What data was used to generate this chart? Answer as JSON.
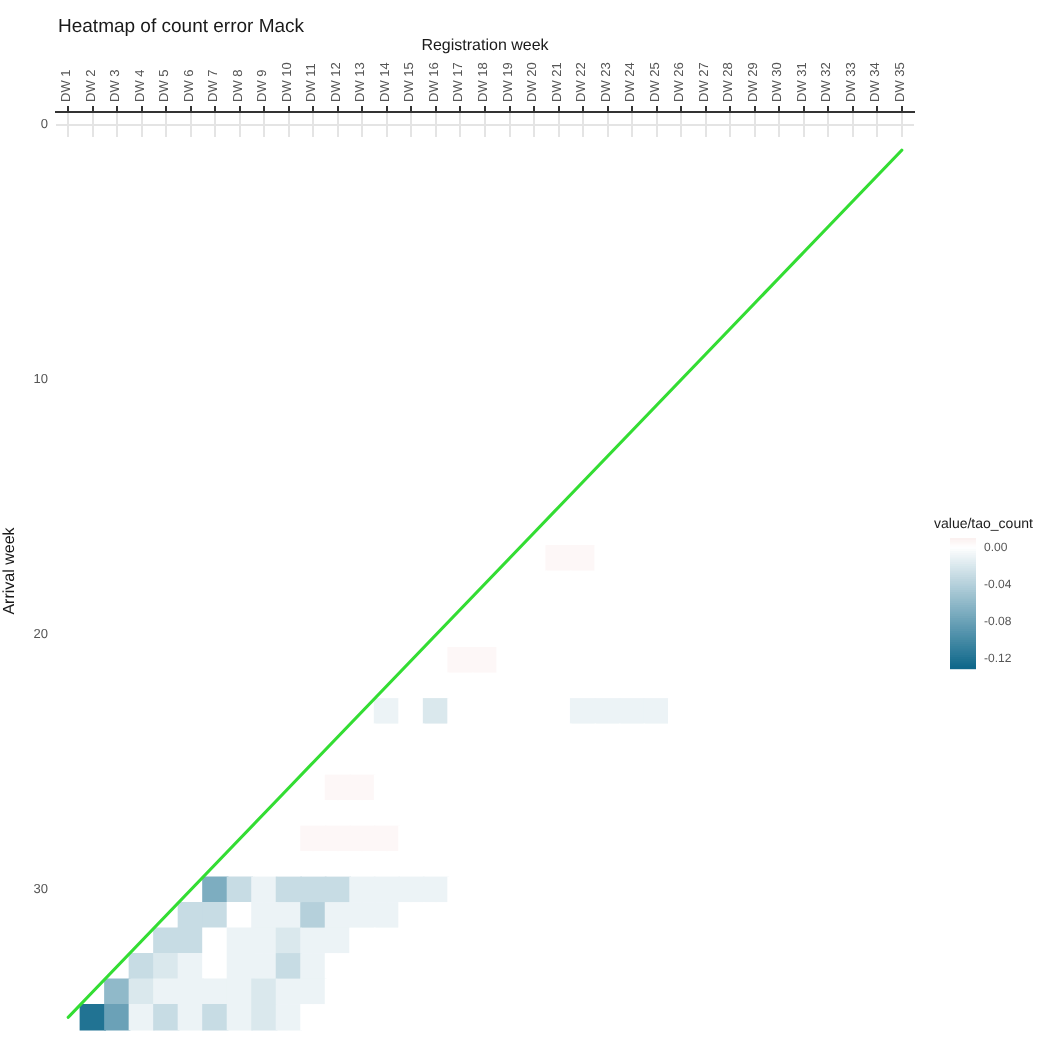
{
  "chart_data": {
    "type": "heatmap",
    "title": "Heatmap of count error Mack",
    "xlabel": "Registration week",
    "ylabel": "Arrival week",
    "clabel": "value/tao_count",
    "categories": [
      "DW 1",
      "DW 2",
      "DW 3",
      "DW 4",
      "DW 5",
      "DW 6",
      "DW 7",
      "DW 8",
      "DW 9",
      "DW 10",
      "DW 11",
      "DW 12",
      "DW 13",
      "DW 14",
      "DW 15",
      "DW 16",
      "DW 17",
      "DW 18",
      "DW 19",
      "DW 20",
      "DW 21",
      "DW 22",
      "DW 23",
      "DW 24",
      "DW 25",
      "DW 26",
      "DW 27",
      "DW 28",
      "DW 29",
      "DW 30",
      "DW 31",
      "DW 32",
      "DW 33",
      "DW 34",
      "DW 35"
    ],
    "y_categories": [
      "0",
      null,
      null,
      null,
      null,
      null,
      null,
      null,
      null,
      null,
      "10",
      null,
      null,
      null,
      null,
      null,
      null,
      null,
      null,
      null,
      "20",
      null,
      null,
      null,
      null,
      null,
      null,
      null,
      null,
      null,
      "30",
      null,
      null,
      null,
      null,
      null
    ],
    "cells": [
      [
        null,
        null,
        null,
        null,
        null,
        null,
        null,
        null,
        null,
        null,
        null,
        null,
        null,
        null,
        null,
        null,
        null,
        null,
        null,
        null,
        null,
        null,
        null,
        null,
        null,
        null,
        null,
        null,
        null,
        null,
        null,
        null,
        null,
        null,
        null
      ],
      [
        0,
        0,
        0,
        0,
        0,
        0,
        0,
        0,
        0,
        0,
        0,
        0,
        0,
        0,
        0,
        0,
        0,
        0,
        0,
        0,
        0,
        0,
        0,
        0,
        0,
        0,
        0,
        0,
        0,
        0,
        0,
        0,
        0,
        0,
        0
      ],
      [
        0,
        0,
        0,
        0,
        0,
        0,
        0,
        0,
        0,
        0,
        0,
        0,
        0,
        0,
        0,
        0,
        0,
        0,
        0,
        0,
        0,
        0,
        0,
        0,
        0,
        0,
        0,
        0,
        0,
        0,
        0,
        0,
        0,
        0,
        0
      ],
      [
        0,
        0,
        0,
        0,
        0,
        0,
        0,
        0,
        0,
        0,
        0,
        0,
        0,
        0,
        0,
        0,
        0,
        0,
        0,
        0,
        0,
        0,
        0,
        0,
        0,
        0,
        0,
        0,
        0,
        0,
        0,
        0,
        0,
        0,
        0
      ],
      [
        0,
        0,
        0,
        0,
        0,
        0,
        0,
        0,
        0,
        0,
        0,
        0,
        0,
        0,
        0,
        0,
        0,
        0,
        0,
        0,
        0,
        0,
        0,
        0,
        0,
        0,
        0,
        0,
        0,
        0,
        0,
        0,
        0,
        0,
        0
      ],
      [
        0,
        0,
        0,
        0,
        0,
        0,
        0,
        0,
        0,
        0,
        0,
        0,
        0,
        0,
        0,
        0,
        0,
        0,
        0,
        0,
        0,
        0,
        0,
        0,
        0,
        0,
        0,
        0,
        0,
        0,
        0,
        0,
        0,
        0,
        0
      ],
      [
        0,
        0,
        0,
        0,
        0,
        0,
        0,
        0,
        0,
        0,
        0,
        0,
        0,
        0,
        0,
        0,
        0,
        0,
        0,
        0,
        0,
        0,
        0,
        0,
        0,
        0,
        0,
        0,
        0,
        0,
        0,
        0,
        0,
        0,
        0
      ],
      [
        0,
        0,
        0,
        0,
        0,
        0,
        0,
        0,
        0,
        0,
        0,
        0,
        0,
        0,
        0,
        0,
        0,
        0,
        0,
        0,
        0,
        0,
        0,
        0,
        0,
        0,
        0,
        0,
        0,
        0,
        0,
        0,
        0,
        0,
        0
      ],
      [
        0,
        0,
        0,
        0,
        0,
        0,
        0,
        0,
        0,
        0,
        0,
        0,
        0,
        0,
        0,
        0,
        0,
        0,
        0,
        0,
        0,
        0,
        0,
        0,
        0,
        0,
        0,
        0,
        0,
        0,
        0,
        0,
        0,
        0,
        0
      ],
      [
        0,
        0,
        0,
        0,
        0,
        0,
        0,
        0,
        0,
        0,
        0,
        0,
        0,
        0,
        0,
        0,
        0,
        0,
        0,
        0,
        0,
        0,
        0,
        0,
        0,
        0,
        0,
        0,
        0,
        0,
        0,
        0,
        0,
        0,
        0
      ],
      [
        0,
        0,
        0,
        0,
        0,
        0,
        0,
        0,
        0,
        0,
        0,
        0,
        0,
        0,
        0,
        0,
        0,
        0,
        0,
        0,
        0,
        0,
        0,
        0,
        0,
        0,
        0,
        0,
        0,
        0,
        0,
        0,
        0,
        0,
        0
      ],
      [
        0,
        0,
        0,
        0,
        0,
        0,
        0,
        0,
        0,
        0,
        0,
        0,
        0,
        0,
        0,
        0,
        0,
        0,
        0,
        0,
        0,
        0,
        0,
        0,
        0,
        0,
        0,
        0,
        0,
        0,
        0,
        0,
        0,
        0,
        0
      ],
      [
        0,
        0,
        0,
        0,
        0,
        0,
        0,
        0,
        0,
        0,
        0,
        0,
        0,
        0,
        0,
        0,
        0,
        0,
        0,
        0,
        0,
        0,
        0,
        0,
        0,
        0,
        0,
        0,
        0,
        0,
        0,
        0,
        0,
        0,
        0
      ],
      [
        0,
        0,
        0,
        0,
        0,
        0,
        0,
        0,
        0,
        0,
        0,
        0,
        0,
        0,
        0,
        0,
        0,
        0,
        0,
        0,
        0,
        0,
        0,
        0,
        0,
        0,
        0,
        0,
        0,
        0,
        0,
        0,
        0,
        0,
        0
      ],
      [
        0,
        0,
        0,
        0,
        0,
        0,
        0,
        0,
        0,
        0,
        0,
        0,
        0,
        0,
        0,
        0,
        0,
        0,
        0,
        0,
        0,
        0,
        0,
        0,
        0,
        0,
        0,
        0,
        0,
        0,
        0,
        0,
        0,
        0,
        0
      ],
      [
        0,
        0,
        0,
        0,
        0,
        0,
        0,
        0,
        0,
        0,
        0,
        0,
        0,
        0,
        0,
        0,
        0,
        0,
        0,
        0,
        0,
        0,
        0,
        0,
        0,
        0,
        0,
        0,
        0,
        0,
        0,
        0,
        0,
        0,
        0
      ],
      [
        0,
        0,
        0,
        0,
        0,
        0,
        0,
        0,
        0,
        0,
        0,
        0,
        0,
        0,
        0,
        0,
        0,
        0,
        0,
        0,
        0,
        0,
        0,
        0,
        0,
        0,
        0,
        0,
        0,
        0,
        0,
        0,
        0,
        0,
        0
      ],
      [
        0,
        0,
        0,
        0,
        0,
        0,
        0,
        0,
        0,
        0,
        0,
        0,
        0,
        0,
        0,
        0,
        0,
        0,
        0,
        0,
        0.005,
        0.005,
        0,
        0,
        0,
        0,
        0,
        0,
        0,
        0,
        0,
        0,
        0,
        0,
        0
      ],
      [
        0,
        0,
        0,
        0,
        0,
        0,
        0,
        0,
        0,
        0,
        0,
        0,
        0,
        0,
        0,
        0,
        0,
        0,
        0,
        0,
        0,
        0,
        0,
        0,
        0,
        0,
        0,
        0,
        0,
        0,
        0,
        0,
        0,
        0,
        0
      ],
      [
        0,
        0,
        0,
        0,
        0,
        0,
        0,
        0,
        0,
        0,
        0,
        0,
        0,
        0,
        0,
        0,
        0,
        0,
        0,
        0,
        0,
        0,
        0,
        0,
        0,
        0,
        0,
        0,
        0,
        0,
        0,
        0,
        0,
        0,
        0
      ],
      [
        0,
        0,
        0,
        0,
        0,
        0,
        0,
        0,
        0,
        0,
        0,
        0,
        0,
        0,
        0,
        0,
        0,
        0,
        0,
        0,
        0,
        0,
        0,
        0,
        0,
        0,
        0,
        0,
        0,
        0,
        0,
        0,
        0,
        0,
        0
      ],
      [
        0,
        0,
        0,
        0,
        0,
        0,
        0,
        0,
        0,
        0,
        0,
        0,
        0,
        0,
        0,
        0,
        0.005,
        0.005,
        0,
        0,
        0,
        0,
        0,
        0,
        0,
        0,
        0,
        0,
        0,
        0,
        0,
        0,
        0,
        0,
        0
      ],
      [
        0,
        0,
        0,
        0,
        0,
        0,
        0,
        0,
        0,
        0,
        0,
        0,
        0,
        0,
        0,
        0,
        0,
        0,
        0,
        0,
        0,
        0,
        0,
        0,
        0,
        0,
        0,
        0,
        0,
        0,
        0,
        0,
        0,
        0,
        0
      ],
      [
        0,
        0,
        0,
        0,
        0,
        0,
        0,
        0,
        0,
        0,
        0,
        0,
        0,
        -0.01,
        0,
        -0.02,
        0,
        0,
        0,
        0,
        0,
        -0.01,
        -0.01,
        -0.01,
        -0.01,
        0,
        0,
        0,
        0,
        0,
        0,
        0,
        0,
        0,
        0
      ],
      [
        0,
        0,
        0,
        0,
        0,
        0,
        0,
        0,
        0,
        0,
        0,
        0,
        0,
        0,
        0,
        0,
        0,
        0,
        0,
        0,
        0,
        0,
        0,
        0,
        0,
        0,
        0,
        0,
        0,
        0,
        0,
        0,
        0,
        0,
        0
      ],
      [
        0,
        0,
        0,
        0,
        0,
        0,
        0,
        0,
        0,
        0,
        0,
        0,
        0,
        0,
        0,
        0,
        0,
        0,
        0,
        0,
        0,
        0,
        0,
        0,
        0,
        0,
        0,
        0,
        0,
        0,
        0,
        0,
        0,
        0,
        0
      ],
      [
        0,
        0,
        0,
        0,
        0,
        0,
        0,
        0,
        0,
        0,
        0,
        0.005,
        0.005,
        0,
        0,
        0,
        0,
        0,
        0,
        0,
        0,
        0,
        0,
        0,
        0,
        0,
        0,
        0,
        0,
        0,
        0,
        0,
        0,
        0,
        0
      ],
      [
        0,
        0,
        0,
        0,
        0,
        0,
        0,
        0,
        0,
        0,
        0,
        0,
        0,
        0,
        0,
        0,
        0,
        0,
        0,
        0,
        0,
        0,
        0,
        0,
        0,
        0,
        0,
        0,
        0,
        0,
        0,
        0,
        0,
        0,
        0
      ],
      [
        0,
        0,
        0,
        0,
        0,
        0,
        0,
        0,
        0,
        0,
        0.005,
        0.005,
        0.005,
        0.005,
        0,
        0,
        0,
        0,
        0,
        0,
        0,
        0,
        0,
        0,
        0,
        0,
        0,
        0,
        0,
        0,
        0,
        0,
        0,
        0,
        0
      ],
      [
        0,
        0,
        0,
        0,
        0,
        0,
        0,
        0,
        0,
        0,
        0,
        0,
        0,
        0,
        0,
        0,
        0,
        0,
        0,
        0,
        0,
        0,
        0,
        0,
        0,
        0,
        0,
        0,
        0,
        0,
        0,
        0,
        0,
        0,
        0
      ],
      [
        0,
        0,
        0,
        0,
        0,
        0,
        -0.07,
        -0.03,
        -0.01,
        -0.03,
        -0.03,
        -0.03,
        -0.01,
        -0.01,
        -0.01,
        -0.01,
        0,
        0,
        0,
        0,
        0,
        0,
        0,
        0,
        0,
        0,
        0,
        0,
        0,
        0,
        0,
        0,
        0,
        0,
        0
      ],
      [
        0,
        0,
        0,
        0,
        0,
        -0.03,
        -0.03,
        0,
        -0.01,
        -0.01,
        -0.04,
        -0.01,
        -0.01,
        -0.01,
        0,
        0,
        0,
        0,
        0,
        0,
        0,
        0,
        0,
        0,
        0,
        0,
        0,
        0,
        0,
        0,
        0,
        0,
        0,
        0,
        0
      ],
      [
        0,
        0,
        0,
        0,
        -0.03,
        -0.03,
        0,
        -0.01,
        -0.01,
        -0.02,
        -0.01,
        -0.01,
        0,
        0,
        0,
        0,
        0,
        0,
        0,
        0,
        0,
        0,
        0,
        0,
        0,
        0,
        0,
        0,
        0,
        0,
        0,
        0,
        0,
        0,
        0
      ],
      [
        0,
        0,
        0,
        -0.03,
        -0.02,
        -0.01,
        0,
        -0.01,
        -0.01,
        -0.03,
        -0.01,
        0,
        0,
        0,
        0,
        0,
        0,
        0,
        0,
        0,
        0,
        0,
        0,
        0,
        0,
        0,
        0,
        0,
        0,
        0,
        0,
        0,
        0,
        0,
        0
      ],
      [
        0,
        0,
        -0.06,
        -0.02,
        -0.01,
        -0.01,
        -0.01,
        -0.01,
        -0.02,
        -0.01,
        -0.01,
        0,
        0,
        0,
        0,
        0,
        0,
        0,
        0,
        0,
        0,
        0,
        0,
        0,
        0,
        0,
        0,
        0,
        0,
        0,
        0,
        0,
        0,
        0,
        0
      ],
      [
        0,
        -0.12,
        -0.08,
        -0.01,
        -0.03,
        -0.01,
        -0.03,
        -0.01,
        -0.02,
        -0.01,
        0,
        0,
        0,
        0,
        0,
        0,
        0,
        0,
        0,
        0,
        0,
        0,
        0,
        0,
        0,
        0,
        0,
        0,
        0,
        0,
        0,
        0,
        0,
        0,
        0
      ]
    ],
    "clim": [
      -0.13,
      0.01
    ],
    "cticks": [
      {
        "value": 0,
        "label": "0.00"
      },
      -0.04,
      -0.08,
      -0.12
    ],
    "series": [
      {
        "type": "line",
        "color": "#33dd33",
        "values": [
          35,
          34,
          33,
          32,
          31,
          30,
          29,
          28,
          27,
          26,
          25,
          24,
          23,
          22,
          21,
          20,
          19,
          18,
          17,
          16,
          15,
          14,
          13,
          12,
          11,
          10,
          9,
          8,
          7,
          6,
          5,
          4,
          3,
          2,
          1
        ]
      }
    ],
    "grid": true
  }
}
